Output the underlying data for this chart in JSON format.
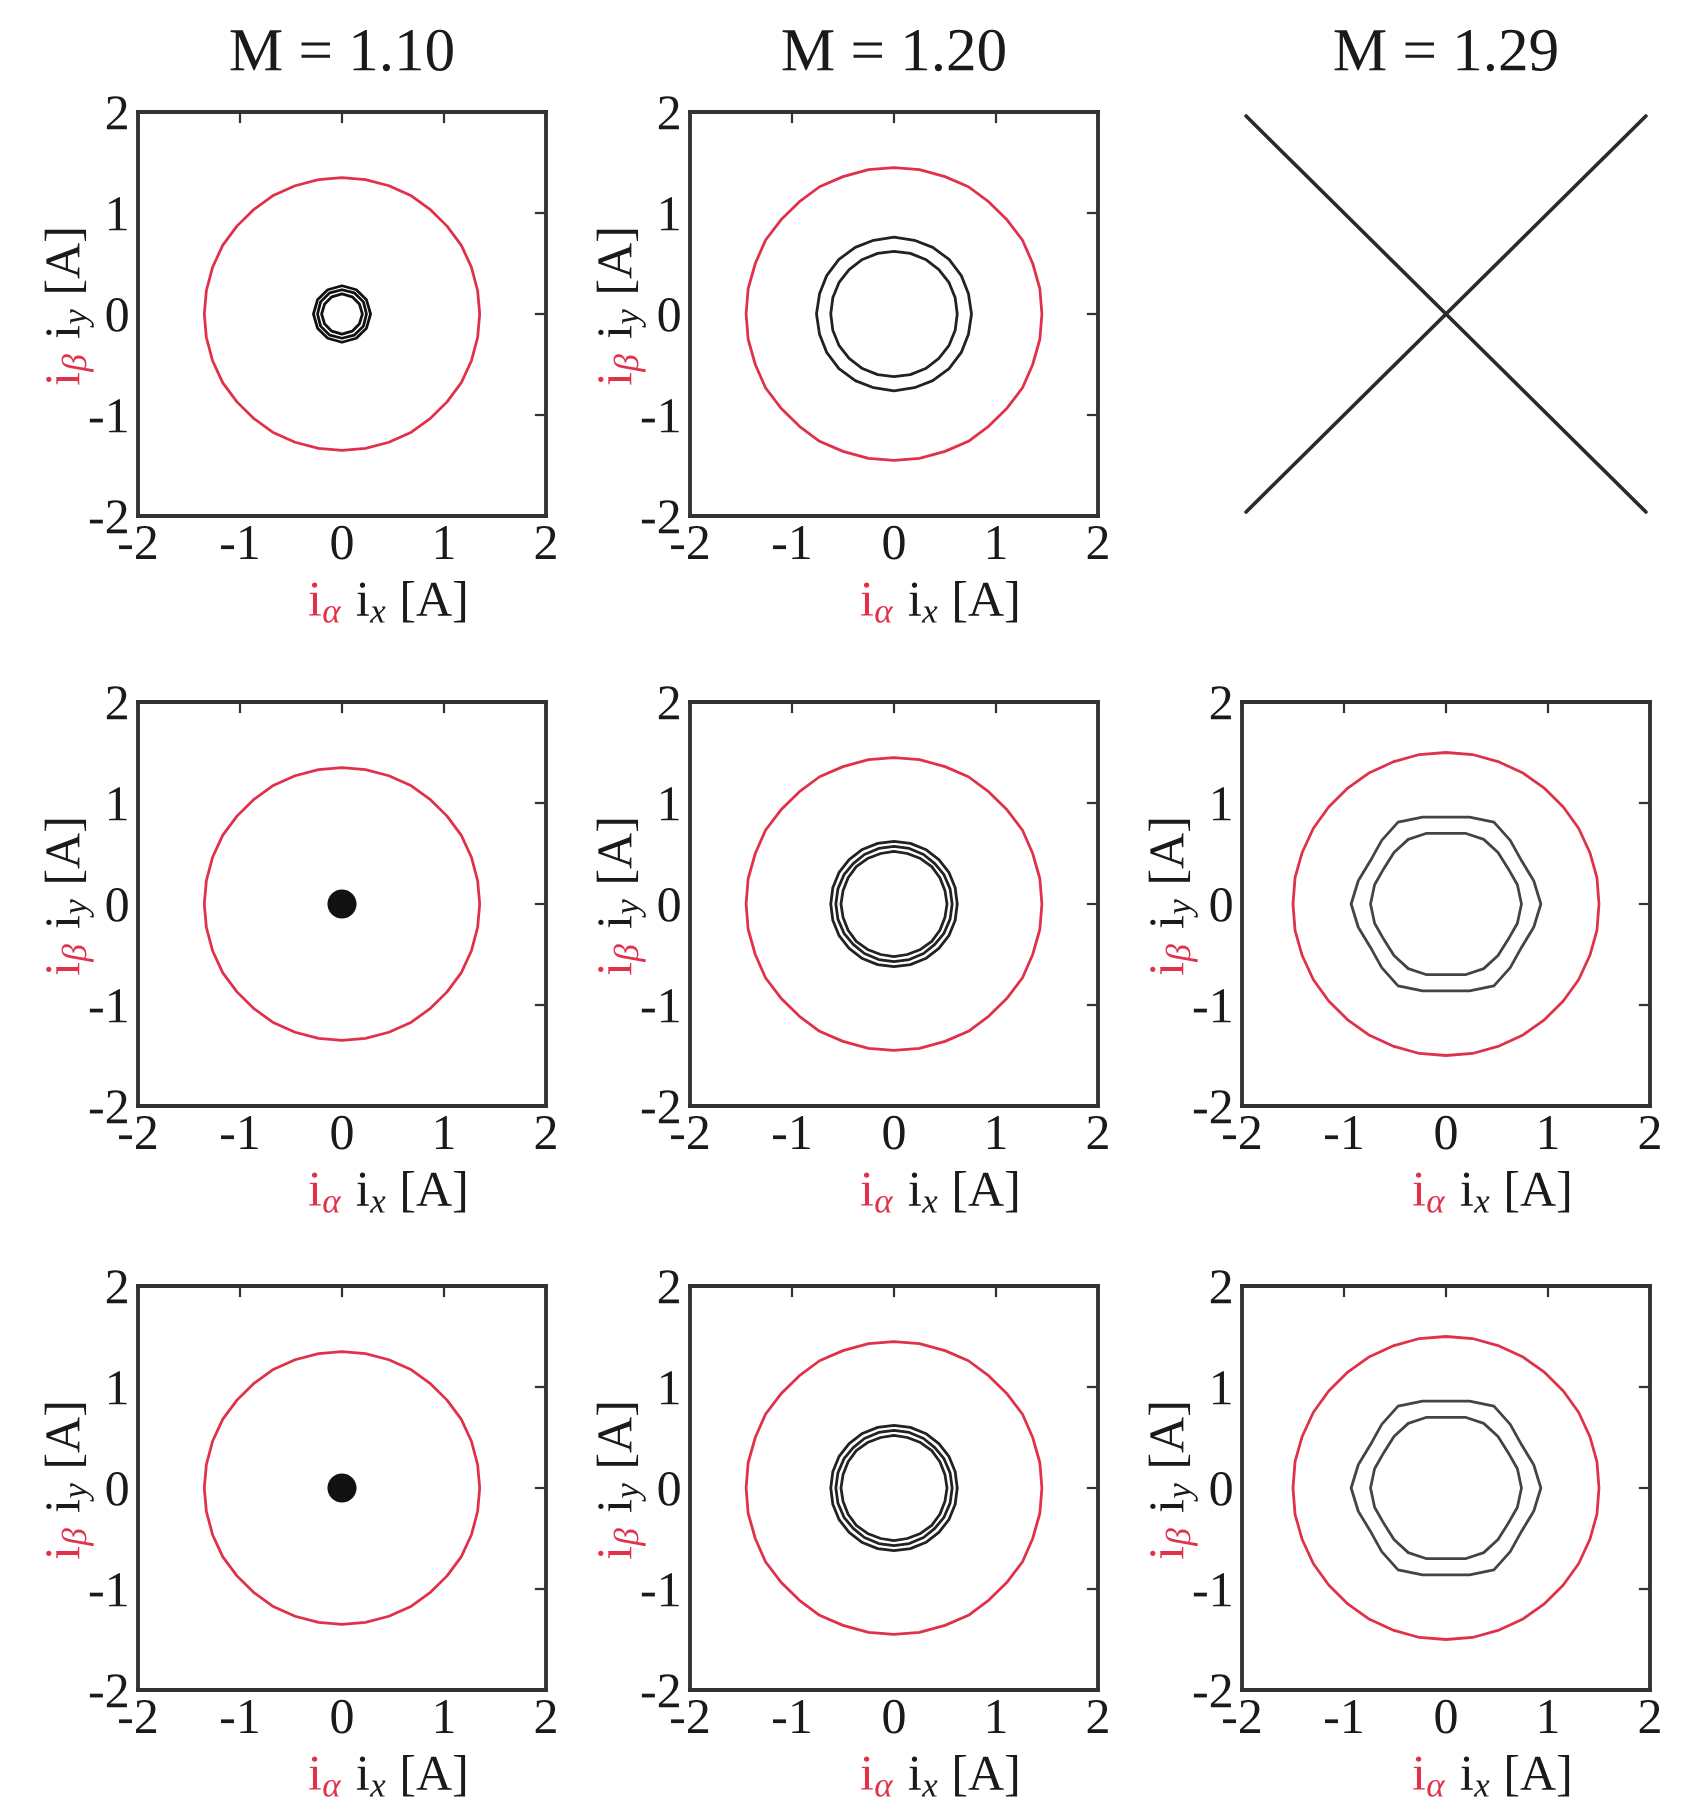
{
  "chart_data": [
    {
      "type": "line",
      "title": "M = 1.10",
      "xlabel": "i$_{α}$ i$_{x}$ [A]",
      "ylabel": "i$_{β}$ i$_{y}$ [A]",
      "xlim": [
        -2,
        2
      ],
      "ylim": [
        -2,
        2
      ],
      "xticks": [
        -2,
        -1,
        0,
        1,
        2
      ],
      "yticks": [
        -2,
        -1,
        0,
        1,
        2
      ],
      "series": [
        {
          "color": "#e0304a",
          "x": [
            1.35,
            1.33,
            1.27,
            1.17,
            1.03,
            0.87,
            0.68,
            0.46,
            0.23,
            0,
            -0.23,
            -0.46,
            -0.68,
            -0.87,
            -1.03,
            -1.17,
            -1.27,
            -1.33,
            -1.35,
            -1.33,
            -1.27,
            -1.17,
            -1.03,
            -0.87,
            -0.68,
            -0.46,
            -0.23,
            0,
            0.23,
            0.46,
            0.68,
            0.87,
            1.03,
            1.17,
            1.27,
            1.33,
            1.35,
            1.33,
            1.27,
            1.17
          ],
          "values": [
            0,
            0.23,
            0.46,
            0.68,
            0.87,
            1.03,
            1.17,
            1.27,
            1.33,
            1.35,
            1.33,
            1.27,
            1.17,
            1.03,
            0.87,
            0.68,
            0.46,
            0.23,
            0,
            -0.23,
            -0.46,
            -0.68,
            -0.87,
            -1.03,
            -1.17,
            -1.27,
            -1.33,
            -1.35,
            -1.33,
            -1.27,
            -1.17,
            -1.03,
            -0.87,
            -0.68,
            -0.46,
            -0.23,
            0,
            0.23,
            0.46,
            0.68
          ]
        },
        {
          "color": "#111111",
          "x": [
            0.28,
            0.24,
            0.14,
            0,
            -0.14,
            -0.24,
            -0.28,
            -0.24,
            -0.14,
            0,
            0.14,
            0.24,
            0.28,
            0.24
          ],
          "values": [
            0,
            0.14,
            0.24,
            0.28,
            0.24,
            0.14,
            0,
            -0.14,
            -0.24,
            -0.28,
            -0.24,
            -0.14,
            0,
            0.14
          ]
        },
        {
          "color": "#111111",
          "x": [
            0.24,
            0.21,
            0.12,
            0,
            -0.12,
            -0.21,
            -0.24,
            -0.21,
            -0.12,
            0,
            0.12,
            0.21,
            0.24,
            0.21
          ],
          "values": [
            0,
            0.12,
            0.21,
            0.24,
            0.21,
            0.12,
            0,
            -0.12,
            -0.21,
            -0.24,
            -0.21,
            -0.12,
            0,
            0.12
          ]
        },
        {
          "color": "#111111",
          "x": [
            0.2,
            0.17,
            0.1,
            0,
            -0.1,
            -0.17,
            -0.2,
            -0.17,
            -0.1,
            0,
            0.1,
            0.17,
            0.2,
            0.17
          ],
          "values": [
            0,
            0.1,
            0.17,
            0.2,
            0.17,
            0.1,
            0,
            -0.1,
            -0.17,
            -0.2,
            -0.17,
            -0.1,
            0,
            0.1
          ]
        }
      ]
    },
    {
      "type": "line",
      "title": "M = 1.20",
      "xlabel": "i$_{α}$ i$_{x}$ [A]",
      "ylabel": "i$_{β}$ i$_{y}$ [A]",
      "xlim": [
        -2,
        2
      ],
      "ylim": [
        -2,
        2
      ],
      "xticks": [
        -2,
        -1,
        0,
        1,
        2
      ],
      "yticks": [
        -2,
        -1,
        0,
        1,
        2
      ],
      "series": [
        {
          "color": "#e0304a",
          "x": [
            1.45,
            1.43,
            1.36,
            1.26,
            1.11,
            0.93,
            0.73,
            0.5,
            0.25,
            0,
            -0.25,
            -0.5,
            -0.73,
            -0.93,
            -1.11,
            -1.26,
            -1.36,
            -1.43,
            -1.45,
            -1.43,
            -1.36,
            -1.26,
            -1.11,
            -0.93,
            -0.73,
            -0.5,
            -0.25,
            0,
            0.25,
            0.5,
            0.73,
            0.93,
            1.11,
            1.26,
            1.36,
            1.43,
            1.45,
            1.43,
            1.36,
            1.26
          ],
          "values": [
            0,
            0.25,
            0.5,
            0.73,
            0.93,
            1.11,
            1.26,
            1.36,
            1.43,
            1.45,
            1.43,
            1.36,
            1.26,
            1.11,
            0.93,
            0.73,
            0.5,
            0.25,
            0,
            -0.25,
            -0.5,
            -0.73,
            -0.93,
            -1.11,
            -1.26,
            -1.36,
            -1.43,
            -1.45,
            -1.43,
            -1.36,
            -1.26,
            -1.11,
            -0.93,
            -0.73,
            -0.5,
            -0.25,
            0,
            0.25,
            0.5,
            0.73
          ]
        },
        {
          "color": "#222222",
          "x": [
            0.76,
            0.73,
            0.66,
            0.54,
            0.38,
            0.2,
            0,
            -0.2,
            -0.38,
            -0.54,
            -0.66,
            -0.73,
            -0.76,
            -0.73,
            -0.66,
            -0.54,
            -0.38,
            -0.2,
            0,
            0.2,
            0.38,
            0.54,
            0.66,
            0.73,
            0.76,
            0.73,
            0.66
          ],
          "values": [
            0,
            0.2,
            0.38,
            0.54,
            0.66,
            0.73,
            0.76,
            0.73,
            0.66,
            0.54,
            0.38,
            0.2,
            0,
            -0.2,
            -0.38,
            -0.54,
            -0.66,
            -0.73,
            -0.76,
            -0.73,
            -0.66,
            -0.54,
            -0.38,
            -0.2,
            0,
            0.2,
            0.38
          ]
        },
        {
          "color": "#222222",
          "x": [
            0.62,
            0.6,
            0.54,
            0.44,
            0.31,
            0.16,
            0,
            -0.16,
            -0.31,
            -0.44,
            -0.54,
            -0.6,
            -0.62,
            -0.6,
            -0.54,
            -0.44,
            -0.31,
            -0.16,
            0,
            0.16,
            0.31,
            0.44,
            0.54,
            0.6,
            0.62,
            0.6,
            0.54
          ],
          "values": [
            0,
            0.16,
            0.31,
            0.44,
            0.54,
            0.6,
            0.62,
            0.6,
            0.54,
            0.44,
            0.31,
            0.16,
            0,
            -0.16,
            -0.31,
            -0.44,
            -0.54,
            -0.6,
            -0.62,
            -0.6,
            -0.54,
            -0.44,
            -0.31,
            -0.16,
            0,
            0.16,
            0.31
          ]
        }
      ]
    },
    {
      "type": "other",
      "title": "M = 1.29"
    },
    {
      "type": "line",
      "xlabel": "i$_{α}$ i$_{x}$ [A]",
      "ylabel": "i$_{β}$ i$_{y}$ [A]",
      "xlim": [
        -2,
        2
      ],
      "ylim": [
        -2,
        2
      ],
      "xticks": [
        -2,
        -1,
        0,
        1,
        2
      ],
      "yticks": [
        -2,
        -1,
        0,
        1,
        2
      ],
      "series": [
        {
          "color": "#e0304a",
          "x": [
            1.35,
            1.33,
            1.27,
            1.17,
            1.03,
            0.87,
            0.68,
            0.46,
            0.23,
            0,
            -0.23,
            -0.46,
            -0.68,
            -0.87,
            -1.03,
            -1.17,
            -1.27,
            -1.33,
            -1.35,
            -1.33,
            -1.27,
            -1.17,
            -1.03,
            -0.87,
            -0.68,
            -0.46,
            -0.23,
            0,
            0.23,
            0.46,
            0.68,
            0.87,
            1.03,
            1.17,
            1.27,
            1.33,
            1.35,
            1.33,
            1.27,
            1.17
          ],
          "values": [
            0,
            0.23,
            0.46,
            0.68,
            0.87,
            1.03,
            1.17,
            1.27,
            1.33,
            1.35,
            1.33,
            1.27,
            1.17,
            1.03,
            0.87,
            0.68,
            0.46,
            0.23,
            0,
            -0.23,
            -0.46,
            -0.68,
            -0.87,
            -1.03,
            -1.17,
            -1.27,
            -1.33,
            -1.35,
            -1.33,
            -1.27,
            -1.17,
            -1.03,
            -0.87,
            -0.68,
            -0.46,
            -0.23,
            0,
            0.23,
            0.46,
            0.68
          ]
        },
        {
          "type": "scatter",
          "marker": "circle",
          "color": "#111111",
          "x": [
            0
          ],
          "values": [
            0
          ]
        }
      ]
    },
    {
      "type": "line",
      "xlabel": "i$_{α}$ i$_{x}$ [A]",
      "ylabel": "i$_{β}$ i$_{y}$ [A]",
      "xlim": [
        -2,
        2
      ],
      "ylim": [
        -2,
        2
      ],
      "xticks": [
        -2,
        -1,
        0,
        1,
        2
      ],
      "yticks": [
        -2,
        -1,
        0,
        1,
        2
      ],
      "series": [
        {
          "color": "#e0304a",
          "x": [
            1.45,
            1.43,
            1.36,
            1.26,
            1.11,
            0.93,
            0.73,
            0.5,
            0.25,
            0,
            -0.25,
            -0.5,
            -0.73,
            -0.93,
            -1.11,
            -1.26,
            -1.36,
            -1.43,
            -1.45,
            -1.43,
            -1.36,
            -1.26,
            -1.11,
            -0.93,
            -0.73,
            -0.5,
            -0.25,
            0,
            0.25,
            0.5,
            0.73,
            0.93,
            1.11,
            1.26,
            1.36,
            1.43,
            1.45,
            1.43,
            1.36,
            1.26
          ],
          "values": [
            0,
            0.25,
            0.5,
            0.73,
            0.93,
            1.11,
            1.26,
            1.36,
            1.43,
            1.45,
            1.43,
            1.36,
            1.26,
            1.11,
            0.93,
            0.73,
            0.5,
            0.25,
            0,
            -0.25,
            -0.5,
            -0.73,
            -0.93,
            -1.11,
            -1.26,
            -1.36,
            -1.43,
            -1.45,
            -1.43,
            -1.36,
            -1.26,
            -1.11,
            -0.93,
            -0.73,
            -0.5,
            -0.25,
            0,
            0.25,
            0.5,
            0.73
          ]
        },
        {
          "color": "#222222",
          "x": [
            0.62,
            0.6,
            0.54,
            0.44,
            0.31,
            0.16,
            0,
            -0.16,
            -0.31,
            -0.44,
            -0.54,
            -0.6,
            -0.62,
            -0.6,
            -0.54,
            -0.44,
            -0.31,
            -0.16,
            0,
            0.16,
            0.31,
            0.44,
            0.54,
            0.6,
            0.62,
            0.6,
            0.54
          ],
          "values": [
            0,
            0.16,
            0.31,
            0.44,
            0.54,
            0.6,
            0.62,
            0.6,
            0.54,
            0.44,
            0.31,
            0.16,
            0,
            -0.16,
            -0.31,
            -0.44,
            -0.54,
            -0.6,
            -0.62,
            -0.6,
            -0.54,
            -0.44,
            -0.31,
            -0.16,
            0,
            0.16,
            0.31
          ]
        },
        {
          "color": "#222222",
          "x": [
            0.57,
            0.55,
            0.49,
            0.4,
            0.29,
            0.15,
            0,
            -0.15,
            -0.29,
            -0.4,
            -0.49,
            -0.55,
            -0.57,
            -0.55,
            -0.49,
            -0.4,
            -0.29,
            -0.15,
            0,
            0.15,
            0.29,
            0.4,
            0.49,
            0.55,
            0.57,
            0.55,
            0.49
          ],
          "values": [
            0,
            0.15,
            0.29,
            0.4,
            0.49,
            0.55,
            0.57,
            0.55,
            0.49,
            0.4,
            0.29,
            0.15,
            0,
            -0.15,
            -0.29,
            -0.4,
            -0.49,
            -0.55,
            -0.57,
            -0.55,
            -0.49,
            -0.4,
            -0.29,
            -0.15,
            0,
            0.15,
            0.29
          ]
        },
        {
          "color": "#222222",
          "x": [
            0.52,
            0.5,
            0.45,
            0.37,
            0.26,
            0.13,
            0,
            -0.13,
            -0.26,
            -0.37,
            -0.45,
            -0.5,
            -0.52,
            -0.5,
            -0.45,
            -0.37,
            -0.26,
            -0.13,
            0,
            0.13,
            0.26,
            0.37,
            0.45,
            0.5,
            0.52,
            0.5,
            0.45
          ],
          "values": [
            0,
            0.13,
            0.26,
            0.37,
            0.45,
            0.5,
            0.52,
            0.5,
            0.45,
            0.37,
            0.26,
            0.13,
            0,
            -0.13,
            -0.26,
            -0.37,
            -0.45,
            -0.5,
            -0.52,
            -0.5,
            -0.45,
            -0.37,
            -0.26,
            -0.13,
            0,
            0.13,
            0.26
          ]
        }
      ]
    },
    {
      "type": "line",
      "xlabel": "i$_{α}$ i$_{x}$ [A]",
      "ylabel": "i$_{β}$ i$_{y}$ [A]",
      "xlim": [
        -2,
        2
      ],
      "ylim": [
        -2,
        2
      ],
      "xticks": [
        -2,
        -1,
        0,
        1,
        2
      ],
      "yticks": [
        -2,
        -1,
        0,
        1,
        2
      ],
      "series": [
        {
          "color": "#e0304a",
          "x": [
            1.5,
            1.48,
            1.41,
            1.3,
            1.15,
            0.96,
            0.75,
            0.51,
            0.26,
            0,
            -0.26,
            -0.51,
            -0.75,
            -0.96,
            -1.15,
            -1.3,
            -1.41,
            -1.48,
            -1.5,
            -1.48,
            -1.41,
            -1.3,
            -1.15,
            -0.96,
            -0.75,
            -0.51,
            -0.26,
            0,
            0.26,
            0.51,
            0.75,
            0.96,
            1.15,
            1.3,
            1.41,
            1.48,
            1.5,
            1.48,
            1.41,
            1.3
          ],
          "values": [
            0,
            0.26,
            0.51,
            0.75,
            0.96,
            1.15,
            1.3,
            1.41,
            1.48,
            1.5,
            1.48,
            1.41,
            1.3,
            1.15,
            0.96,
            0.75,
            0.51,
            0.26,
            0,
            -0.26,
            -0.51,
            -0.75,
            -0.96,
            -1.15,
            -1.3,
            -1.41,
            -1.48,
            -1.5,
            -1.48,
            -1.41,
            -1.3,
            -1.15,
            -0.96,
            -0.75,
            -0.51,
            -0.26,
            0,
            0.26,
            0.51,
            0.75
          ]
        },
        {
          "color": "#444444",
          "x": [
            0.93,
            0.86,
            0.74,
            0.63,
            0.47,
            0.23,
            0,
            -0.23,
            -0.47,
            -0.63,
            -0.74,
            -0.86,
            -0.93,
            -0.86,
            -0.74,
            -0.63,
            -0.47,
            -0.23,
            0,
            0.23,
            0.47,
            0.63,
            0.74,
            0.86,
            0.93,
            0.86,
            0.74
          ],
          "values": [
            0,
            0.23,
            0.43,
            0.63,
            0.81,
            0.86,
            0.86,
            0.86,
            0.81,
            0.63,
            0.43,
            0.23,
            0,
            -0.23,
            -0.43,
            -0.63,
            -0.81,
            -0.86,
            -0.86,
            -0.86,
            -0.81,
            -0.63,
            -0.43,
            -0.23,
            0,
            0.23,
            0.43
          ]
        },
        {
          "color": "#444444",
          "x": [
            0.74,
            0.7,
            0.61,
            0.51,
            0.37,
            0.19,
            0,
            -0.19,
            -0.37,
            -0.51,
            -0.61,
            -0.7,
            -0.74,
            -0.7,
            -0.61,
            -0.51,
            -0.37,
            -0.19,
            0,
            0.19,
            0.37,
            0.51,
            0.61,
            0.7,
            0.74,
            0.7,
            0.61
          ],
          "values": [
            0,
            0.19,
            0.35,
            0.51,
            0.64,
            0.7,
            0.7,
            0.7,
            0.64,
            0.51,
            0.35,
            0.19,
            0,
            -0.19,
            -0.35,
            -0.51,
            -0.64,
            -0.7,
            -0.7,
            -0.7,
            -0.64,
            -0.51,
            -0.35,
            -0.19,
            0,
            0.19,
            0.35
          ]
        }
      ]
    },
    {
      "type": "line",
      "xlabel": "i$_{α}$ i$_{x}$ [A]",
      "ylabel": "i$_{β}$ i$_{y}$ [A]",
      "xlim": [
        -2,
        2
      ],
      "ylim": [
        -2,
        2
      ],
      "xticks": [
        -2,
        -1,
        0,
        1,
        2
      ],
      "yticks": [
        -2,
        -1,
        0,
        1,
        2
      ],
      "series": [
        {
          "color": "#e0304a",
          "x": [
            1.35,
            1.33,
            1.27,
            1.17,
            1.03,
            0.87,
            0.68,
            0.46,
            0.23,
            0,
            -0.23,
            -0.46,
            -0.68,
            -0.87,
            -1.03,
            -1.17,
            -1.27,
            -1.33,
            -1.35,
            -1.33,
            -1.27,
            -1.17,
            -1.03,
            -0.87,
            -0.68,
            -0.46,
            -0.23,
            0,
            0.23,
            0.46,
            0.68,
            0.87,
            1.03,
            1.17,
            1.27,
            1.33,
            1.35,
            1.33,
            1.27,
            1.17
          ],
          "values": [
            0,
            0.23,
            0.46,
            0.68,
            0.87,
            1.03,
            1.17,
            1.27,
            1.33,
            1.35,
            1.33,
            1.27,
            1.17,
            1.03,
            0.87,
            0.68,
            0.46,
            0.23,
            0,
            -0.23,
            -0.46,
            -0.68,
            -0.87,
            -1.03,
            -1.17,
            -1.27,
            -1.33,
            -1.35,
            -1.33,
            -1.27,
            -1.17,
            -1.03,
            -0.87,
            -0.68,
            -0.46,
            -0.23,
            0,
            0.23,
            0.46,
            0.68
          ]
        },
        {
          "type": "scatter",
          "marker": "circle",
          "color": "#111111",
          "x": [
            0
          ],
          "values": [
            0
          ]
        }
      ]
    },
    {
      "type": "line",
      "xlabel": "i$_{α}$ i$_{x}$ [A]",
      "ylabel": "i$_{β}$ i$_{y}$ [A]",
      "xlim": [
        -2,
        2
      ],
      "ylim": [
        -2,
        2
      ],
      "xticks": [
        -2,
        -1,
        0,
        1,
        2
      ],
      "yticks": [
        -2,
        -1,
        0,
        1,
        2
      ],
      "series": [
        {
          "color": "#e0304a",
          "x": [
            1.45,
            1.43,
            1.36,
            1.26,
            1.11,
            0.93,
            0.73,
            0.5,
            0.25,
            0,
            -0.25,
            -0.5,
            -0.73,
            -0.93,
            -1.11,
            -1.26,
            -1.36,
            -1.43,
            -1.45,
            -1.43,
            -1.36,
            -1.26,
            -1.11,
            -0.93,
            -0.73,
            -0.5,
            -0.25,
            0,
            0.25,
            0.5,
            0.73,
            0.93,
            1.11,
            1.26,
            1.36,
            1.43,
            1.45,
            1.43,
            1.36,
            1.26
          ],
          "values": [
            0,
            0.25,
            0.5,
            0.73,
            0.93,
            1.11,
            1.26,
            1.36,
            1.43,
            1.45,
            1.43,
            1.36,
            1.26,
            1.11,
            0.93,
            0.73,
            0.5,
            0.25,
            0,
            -0.25,
            -0.5,
            -0.73,
            -0.93,
            -1.11,
            -1.26,
            -1.36,
            -1.43,
            -1.45,
            -1.43,
            -1.36,
            -1.26,
            -1.11,
            -0.93,
            -0.73,
            -0.5,
            -0.25,
            0,
            0.25,
            0.5,
            0.73
          ]
        },
        {
          "color": "#222222",
          "x": [
            0.62,
            0.6,
            0.54,
            0.44,
            0.31,
            0.16,
            0,
            -0.16,
            -0.31,
            -0.44,
            -0.54,
            -0.6,
            -0.62,
            -0.6,
            -0.54,
            -0.44,
            -0.31,
            -0.16,
            0,
            0.16,
            0.31,
            0.44,
            0.54,
            0.6,
            0.62,
            0.6,
            0.54
          ],
          "values": [
            0,
            0.16,
            0.31,
            0.44,
            0.54,
            0.6,
            0.62,
            0.6,
            0.54,
            0.44,
            0.31,
            0.16,
            0,
            -0.16,
            -0.31,
            -0.44,
            -0.54,
            -0.6,
            -0.62,
            -0.6,
            -0.54,
            -0.44,
            -0.31,
            -0.16,
            0,
            0.16,
            0.31
          ]
        },
        {
          "color": "#222222",
          "x": [
            0.57,
            0.55,
            0.49,
            0.4,
            0.29,
            0.15,
            0,
            -0.15,
            -0.29,
            -0.4,
            -0.49,
            -0.55,
            -0.57,
            -0.55,
            -0.49,
            -0.4,
            -0.29,
            -0.15,
            0,
            0.15,
            0.29,
            0.4,
            0.49,
            0.55,
            0.57,
            0.55,
            0.49
          ],
          "values": [
            0,
            0.15,
            0.29,
            0.4,
            0.49,
            0.55,
            0.57,
            0.55,
            0.49,
            0.4,
            0.29,
            0.15,
            0,
            -0.15,
            -0.29,
            -0.4,
            -0.49,
            -0.55,
            -0.57,
            -0.55,
            -0.49,
            -0.4,
            -0.29,
            -0.15,
            0,
            0.15,
            0.29
          ]
        },
        {
          "color": "#222222",
          "x": [
            0.52,
            0.5,
            0.45,
            0.37,
            0.26,
            0.13,
            0,
            -0.13,
            -0.26,
            -0.37,
            -0.45,
            -0.5,
            -0.52,
            -0.5,
            -0.45,
            -0.37,
            -0.26,
            -0.13,
            0,
            0.13,
            0.26,
            0.37,
            0.45,
            0.5,
            0.52,
            0.5,
            0.45
          ],
          "values": [
            0,
            0.13,
            0.26,
            0.37,
            0.45,
            0.5,
            0.52,
            0.5,
            0.45,
            0.37,
            0.26,
            0.13,
            0,
            -0.13,
            -0.26,
            -0.37,
            -0.45,
            -0.5,
            -0.52,
            -0.5,
            -0.45,
            -0.37,
            -0.26,
            -0.13,
            0,
            0.13,
            0.26
          ]
        }
      ]
    },
    {
      "type": "line",
      "xlabel": "i$_{α}$ i$_{x}$ [A]",
      "ylabel": "i$_{β}$ i$_{y}$ [A]",
      "xlim": [
        -2,
        2
      ],
      "ylim": [
        -2,
        2
      ],
      "xticks": [
        -2,
        -1,
        0,
        1,
        2
      ],
      "yticks": [
        -2,
        -1,
        0,
        1,
        2
      ],
      "series": [
        {
          "color": "#e0304a",
          "x": [
            1.5,
            1.48,
            1.41,
            1.3,
            1.15,
            0.96,
            0.75,
            0.51,
            0.26,
            0,
            -0.26,
            -0.51,
            -0.75,
            -0.96,
            -1.15,
            -1.3,
            -1.41,
            -1.48,
            -1.5,
            -1.48,
            -1.41,
            -1.3,
            -1.15,
            -0.96,
            -0.75,
            -0.51,
            -0.26,
            0,
            0.26,
            0.51,
            0.75,
            0.96,
            1.15,
            1.3,
            1.41,
            1.48,
            1.5,
            1.48,
            1.41,
            1.3
          ],
          "values": [
            0,
            0.26,
            0.51,
            0.75,
            0.96,
            1.15,
            1.3,
            1.41,
            1.48,
            1.5,
            1.48,
            1.41,
            1.3,
            1.15,
            0.96,
            0.75,
            0.51,
            0.26,
            0,
            -0.26,
            -0.51,
            -0.75,
            -0.96,
            -1.15,
            -1.3,
            -1.41,
            -1.48,
            -1.5,
            -1.48,
            -1.41,
            -1.3,
            -1.15,
            -0.96,
            -0.75,
            -0.51,
            -0.26,
            0,
            0.26,
            0.51,
            0.75
          ]
        },
        {
          "color": "#444444",
          "x": [
            0.93,
            0.86,
            0.74,
            0.63,
            0.47,
            0.23,
            0,
            -0.23,
            -0.47,
            -0.63,
            -0.74,
            -0.86,
            -0.93,
            -0.86,
            -0.74,
            -0.63,
            -0.47,
            -0.23,
            0,
            0.23,
            0.47,
            0.63,
            0.74,
            0.86,
            0.93,
            0.86,
            0.74
          ],
          "values": [
            0,
            0.23,
            0.43,
            0.63,
            0.81,
            0.86,
            0.86,
            0.86,
            0.81,
            0.63,
            0.43,
            0.23,
            0,
            -0.23,
            -0.43,
            -0.63,
            -0.81,
            -0.86,
            -0.86,
            -0.86,
            -0.81,
            -0.63,
            -0.43,
            -0.23,
            0,
            0.23,
            0.43
          ]
        },
        {
          "color": "#444444",
          "x": [
            0.74,
            0.7,
            0.61,
            0.51,
            0.37,
            0.19,
            0,
            -0.19,
            -0.37,
            -0.51,
            -0.61,
            -0.7,
            -0.74,
            -0.7,
            -0.61,
            -0.51,
            -0.37,
            -0.19,
            0,
            0.19,
            0.37,
            0.51,
            0.61,
            0.7,
            0.74,
            0.7,
            0.61
          ],
          "values": [
            0,
            0.19,
            0.35,
            0.51,
            0.64,
            0.7,
            0.7,
            0.7,
            0.64,
            0.51,
            0.35,
            0.19,
            0,
            -0.19,
            -0.35,
            -0.51,
            -0.64,
            -0.7,
            -0.7,
            -0.7,
            -0.64,
            -0.51,
            -0.35,
            -0.19,
            0,
            0.19,
            0.35
          ]
        }
      ]
    }
  ]
}
